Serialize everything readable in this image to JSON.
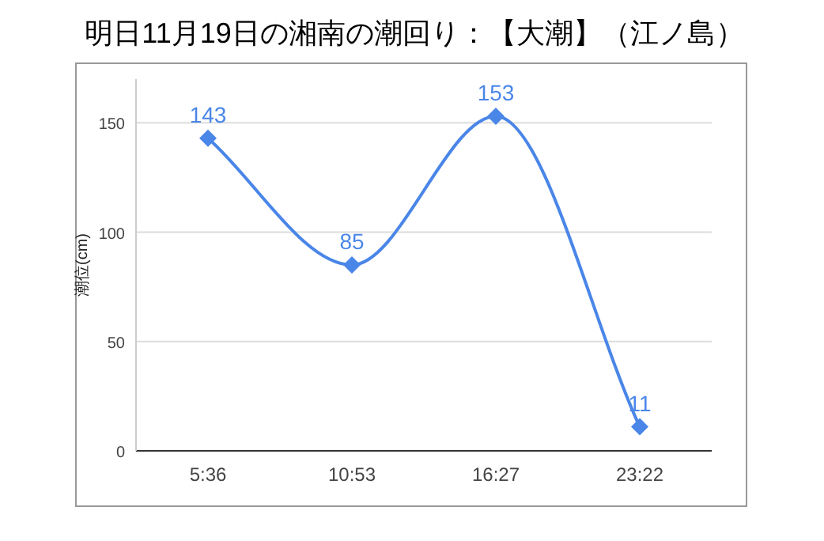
{
  "chart_data": {
    "type": "line",
    "title": "明日11月19日の湘南の潮回り：【大潮】（江ノ島）",
    "ylabel": "潮位(cm)",
    "categories": [
      "5:36",
      "10:53",
      "16:27",
      "23:22"
    ],
    "series": [
      {
        "color": "#4a86e8",
        "values": [
          143,
          85,
          153,
          11
        ]
      }
    ],
    "ylim": [
      0,
      170
    ],
    "yticks": [
      0,
      50,
      100,
      150
    ],
    "grid": "y",
    "data_labels": true,
    "marker": "diamond",
    "line_style": "solid"
  }
}
